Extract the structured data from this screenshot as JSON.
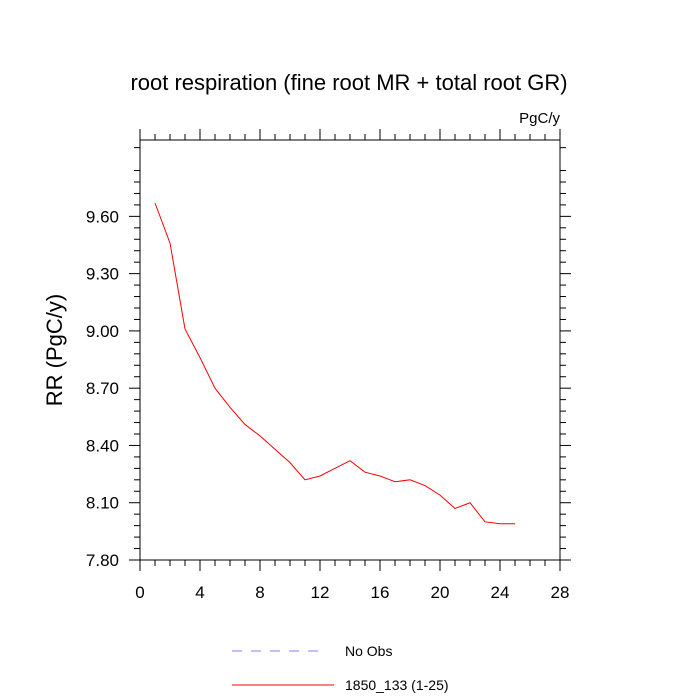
{
  "chart_data": {
    "type": "line",
    "title": "root respiration (fine root MR + total root GR)",
    "units_label": "PgC/y",
    "ylabel": "RR  (PgC/y)",
    "xlabel": "",
    "xlim": [
      0,
      28
    ],
    "ylim": [
      7.8,
      10.0
    ],
    "x_ticks": [
      "0",
      "4",
      "8",
      "12",
      "16",
      "20",
      "24",
      "28"
    ],
    "y_ticks": [
      "7.80",
      "8.10",
      "8.40",
      "8.70",
      "9.00",
      "9.30",
      "9.60"
    ],
    "x_tick_values": [
      0,
      4,
      8,
      12,
      16,
      20,
      24,
      28
    ],
    "y_tick_values": [
      7.8,
      8.1,
      8.4,
      8.7,
      9.0,
      9.3,
      9.6
    ],
    "series": [
      {
        "name": "1850_133 (1-25)",
        "color": "#ff0000",
        "line_style": "solid",
        "x": [
          1,
          2,
          3,
          4,
          5,
          6,
          7,
          8,
          9,
          10,
          11,
          12,
          13,
          14,
          15,
          16,
          17,
          18,
          19,
          20,
          21,
          22,
          23,
          24,
          25
        ],
        "values": [
          9.67,
          9.46,
          9.01,
          8.86,
          8.7,
          8.6,
          8.51,
          8.45,
          8.38,
          8.31,
          8.22,
          8.24,
          8.28,
          8.32,
          8.26,
          8.24,
          8.21,
          8.22,
          8.19,
          8.14,
          8.07,
          8.1,
          8.0,
          7.99,
          7.99
        ]
      }
    ],
    "legend": [
      {
        "label": "No Obs",
        "color": "#8080ff",
        "line_style": "dashed"
      },
      {
        "label": "1850_133 (1-25)",
        "color": "#ff0000",
        "line_style": "solid"
      }
    ],
    "legend_position": "bottom-center"
  }
}
